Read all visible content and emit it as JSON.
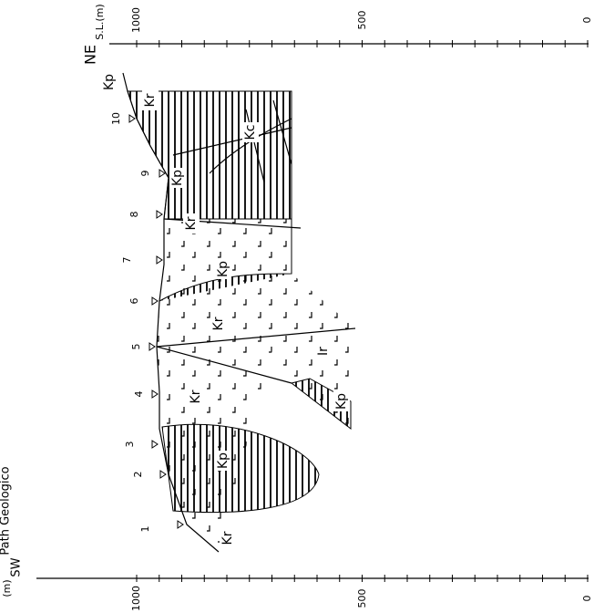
{
  "title": "Path Geologico",
  "top_axis": {
    "direction": "NE",
    "unit": "S.L.(m)",
    "ticks": [
      "1000",
      "500",
      "0"
    ]
  },
  "bottom_axis": {
    "direction": "SW",
    "unit": "(m)",
    "ticks": [
      "1000",
      "500",
      "0"
    ]
  },
  "stations": [
    "1",
    "2",
    "3",
    "4",
    "5",
    "6",
    "7",
    "8",
    "9",
    "10"
  ],
  "units": [
    "Kr",
    "Kp",
    "Kr",
    "Ir",
    "Kp",
    "Kr",
    "Kp",
    "Kr",
    "Kp",
    "Kc",
    "Kr",
    "Kp"
  ]
}
